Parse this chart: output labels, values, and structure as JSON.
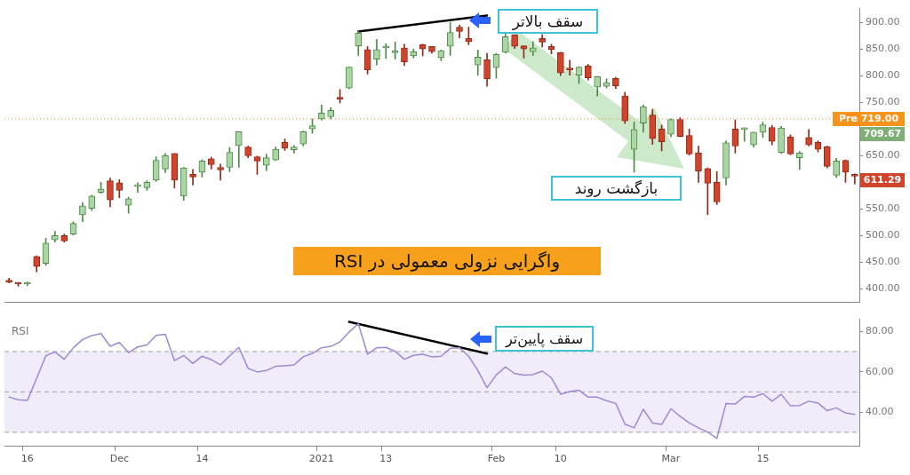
{
  "chart_data": [
    {
      "type": "candlestick",
      "categories": [
        null,
        null,
        null,
        null,
        null,
        null,
        null,
        null,
        null,
        null,
        null,
        null,
        null,
        null,
        null,
        null,
        null,
        null,
        null,
        null,
        null,
        null,
        null,
        null,
        null,
        null,
        null,
        null,
        null,
        null,
        null,
        null,
        null,
        null,
        null,
        null,
        null,
        null,
        null,
        null,
        null,
        null,
        null,
        null,
        null,
        null,
        null,
        null,
        null,
        null,
        null,
        null,
        null,
        null,
        null,
        null,
        null,
        null,
        null,
        null,
        null,
        null,
        null,
        null,
        null,
        null,
        null,
        null,
        null,
        null,
        null,
        null,
        null,
        null,
        null,
        null,
        null,
        null,
        null,
        null,
        null,
        null,
        null,
        null,
        null,
        null,
        null,
        null,
        null,
        null,
        null,
        null,
        null
      ],
      "ohlc": [
        [
          416,
          420,
          411,
          413
        ],
        [
          411,
          412,
          405,
          409
        ],
        [
          409,
          413,
          406,
          410
        ],
        [
          461,
          462,
          432,
          442
        ],
        [
          448,
          495,
          444,
          486
        ],
        [
          492,
          508,
          488,
          500
        ],
        [
          500,
          503,
          488,
          490
        ],
        [
          503,
          526,
          501,
          523
        ],
        [
          539,
          562,
          526,
          556
        ],
        [
          551,
          576,
          547,
          574
        ],
        [
          581,
          600,
          579,
          587
        ],
        [
          603,
          608,
          554,
          567
        ],
        [
          599,
          605,
          571,
          585
        ],
        [
          557,
          572,
          542,
          569
        ],
        [
          592,
          599,
          581,
          594
        ],
        [
          590,
          603,
          585,
          600
        ],
        [
          604,
          648,
          602,
          641
        ],
        [
          625,
          654,
          618,
          650
        ],
        [
          654,
          654,
          589,
          604
        ],
        [
          574,
          628,
          566,
          627
        ],
        [
          615,
          624,
          595,
          610
        ],
        [
          619,
          642,
          610,
          640
        ],
        [
          644,
          647,
          625,
          633
        ],
        [
          628,
          634,
          604,
          623
        ],
        [
          628,
          665,
          620,
          656
        ],
        [
          669,
          695,
          628,
          695
        ],
        [
          666,
          668,
          646,
          650
        ],
        [
          648,
          649,
          615,
          640
        ],
        [
          632,
          653,
          622,
          646
        ],
        [
          642,
          666,
          641,
          662
        ],
        [
          675,
          681,
          660,
          664
        ],
        [
          661,
          669,
          655,
          666
        ],
        [
          672,
          696,
          668,
          695
        ],
        [
          700,
          719,
          692,
          706
        ],
        [
          719,
          745,
          717,
          730
        ],
        [
          723,
          740,
          719,
          735
        ],
        [
          758,
          774,
          749,
          756
        ],
        [
          777,
          816,
          775,
          816
        ],
        [
          856,
          884,
          838,
          880
        ],
        [
          849,
          855,
          803,
          811
        ],
        [
          831,
          868,
          820,
          849
        ],
        [
          852,
          860,
          832,
          854
        ],
        [
          843,
          863,
          831,
          845
        ],
        [
          852,
          859,
          819,
          826
        ],
        [
          837,
          850,
          833,
          845
        ],
        [
          858,
          859,
          837,
          850
        ],
        [
          855,
          855,
          842,
          845
        ],
        [
          834,
          848,
          828,
          847
        ],
        [
          855,
          900,
          838,
          881
        ],
        [
          891,
          895,
          871,
          883
        ],
        [
          870,
          891,
          858,
          864
        ],
        [
          820,
          848,
          801,
          835
        ],
        [
          830,
          842,
          780,
          794
        ],
        [
          815,
          842,
          795,
          840
        ],
        [
          844,
          880,
          842,
          873
        ],
        [
          877,
          877,
          851,
          855
        ],
        [
          856,
          856,
          833,
          850
        ],
        [
          845,
          864,
          838,
          852
        ],
        [
          870,
          877,
          854,
          863
        ],
        [
          855,
          859,
          841,
          849
        ],
        [
          843,
          844,
          800,
          805
        ],
        [
          812,
          829,
          801,
          811
        ],
        [
          801,
          817,
          785,
          816
        ],
        [
          818,
          821,
          792,
          796
        ],
        [
          779,
          799,
          762,
          798
        ],
        [
          780,
          794,
          777,
          787
        ],
        [
          795,
          797,
          776,
          781
        ],
        [
          762,
          769,
          710,
          715
        ],
        [
          662,
          713,
          619,
          699
        ],
        [
          711,
          745,
          694,
          742
        ],
        [
          726,
          737,
          671,
          682
        ],
        [
          700,
          707,
          659,
          676
        ],
        [
          690,
          719,
          685,
          718
        ],
        [
          718,
          721,
          685,
          686
        ],
        [
          688,
          700,
          651,
          653
        ],
        [
          655,
          668,
          600,
          621
        ],
        [
          626,
          627,
          539,
          598
        ],
        [
          600,
          620,
          558,
          563
        ],
        [
          608,
          678,
          595,
          674
        ],
        [
          700,
          717,
          655,
          668
        ],
        [
          699,
          702,
          677,
          700
        ],
        [
          670,
          694,
          666,
          694
        ],
        [
          694,
          713,
          684,
          708
        ],
        [
          703,
          707,
          670,
          677
        ],
        [
          656,
          705,
          654,
          702
        ],
        [
          685,
          689,
          652,
          653
        ],
        [
          646,
          658,
          624,
          655
        ],
        [
          684,
          699,
          668,
          670
        ],
        [
          675,
          678,
          657,
          662
        ],
        [
          667,
          668,
          627,
          630
        ],
        [
          613,
          645,
          609,
          640
        ],
        [
          641,
          642,
          600,
          619
        ],
        [
          615,
          616,
          597,
          611.29
        ]
      ],
      "series": [
        {
          "type": "line",
          "color": "#000000",
          "values": [
            null,
            null,
            null,
            null,
            null,
            null,
            null,
            null,
            null,
            null,
            null,
            null,
            null,
            null,
            null,
            null,
            null,
            null,
            null,
            null,
            null,
            null,
            null,
            null,
            null,
            null,
            null,
            null,
            null,
            null,
            null,
            null,
            null,
            null,
            null,
            null,
            null,
            null,
            883,
            null,
            null,
            null,
            null,
            null,
            null,
            null,
            null,
            null,
            null,
            null,
            null,
            null,
            913,
            null,
            null,
            null,
            null,
            null,
            null,
            null,
            null,
            null,
            null,
            null,
            null,
            null,
            null,
            null,
            null,
            null,
            null,
            null,
            null,
            null,
            null,
            null,
            null,
            null,
            null,
            null,
            null,
            null,
            null,
            null,
            null,
            null,
            null,
            null,
            null,
            null,
            null,
            null,
            null
          ]
        }
      ],
      "ylim": [
        375,
        926
      ],
      "yticks": [
        {
          "value": 400,
          "label": "400.00"
        },
        {
          "value": 450,
          "label": "450.00"
        },
        {
          "value": 500,
          "label": "500.00"
        },
        {
          "value": 550,
          "label": "550.00"
        },
        {
          "value": 600,
          "label": null
        },
        {
          "value": 650,
          "label": "650.00"
        },
        {
          "value": 700,
          "label": null
        },
        {
          "value": 750,
          "label": "750.00"
        },
        {
          "value": 800,
          "label": "800.00"
        },
        {
          "value": 850,
          "label": "850.00"
        },
        {
          "value": 900,
          "label": "900.00"
        }
      ],
      "tick_labels": "y",
      "ref_lines": [
        {
          "axis": "y",
          "value": 719,
          "label": "Pre 719.00",
          "color": "#f7931a",
          "line_style": "dotted"
        }
      ],
      "annotations": [
        "709.67",
        "611.29",
        "سقف بالاتر",
        "بازگشت روند",
        "واگرایی نزولی معمولی در RSI"
      ]
    },
    {
      "type": "line",
      "title": "RSI",
      "categories": [
        null,
        null,
        "16",
        null,
        null,
        null,
        null,
        null,
        null,
        null,
        null,
        null,
        "Dec",
        null,
        null,
        null,
        null,
        null,
        null,
        null,
        null,
        "14",
        null,
        null,
        null,
        null,
        null,
        null,
        null,
        null,
        null,
        null,
        null,
        null,
        "2021",
        null,
        null,
        null,
        null,
        null,
        null,
        "13",
        null,
        null,
        null,
        null,
        null,
        null,
        null,
        null,
        null,
        null,
        null,
        "Feb",
        null,
        null,
        null,
        null,
        null,
        null,
        "10",
        null,
        null,
        null,
        null,
        null,
        null,
        null,
        null,
        null,
        null,
        null,
        "Mar",
        null,
        null,
        null,
        null,
        null,
        null,
        null,
        null,
        null,
        "15",
        null,
        null,
        null,
        null,
        null,
        null,
        null,
        null,
        null,
        null
      ],
      "series": [
        {
          "color": "#9c89d4",
          "values": [
            47.5,
            46.1,
            45.8,
            56.7,
            67.9,
            69.8,
            66.2,
            71.9,
            76,
            77.9,
            78.9,
            72.6,
            74.5,
            69.5,
            72.3,
            73.3,
            78,
            78.6,
            65.5,
            68.1,
            64.1,
            67.7,
            66,
            63.4,
            67.9,
            72.1,
            61.7,
            59.9,
            60.6,
            62.7,
            63,
            63.4,
            67.4,
            69.1,
            71.9,
            72.6,
            74.8,
            79.7,
            83.7,
            68.7,
            71.9,
            72.1,
            70.1,
            66.2,
            68.1,
            68.7,
            67.4,
            67.7,
            71.6,
            71.9,
            67.7,
            60.6,
            52.1,
            58.4,
            62.4,
            59.1,
            58.3,
            58.6,
            60.3,
            57,
            48.9,
            50.2,
            50.8,
            47.4,
            47.4,
            45.7,
            44.3,
            34,
            32.2,
            41.4,
            34.6,
            33.9,
            41.7,
            37.9,
            34.6,
            32.2,
            30.1,
            27,
            44.3,
            44,
            47.8,
            47.4,
            49.2,
            45.4,
            48.8,
            43.1,
            43.3,
            45.4,
            44.5,
            40.7,
            42.1,
            39.6,
            38.9
          ]
        },
        {
          "type": "line",
          "color": "#000000",
          "values": [
            null,
            null,
            null,
            null,
            null,
            null,
            null,
            null,
            null,
            null,
            null,
            null,
            null,
            null,
            null,
            null,
            null,
            null,
            null,
            null,
            null,
            null,
            null,
            null,
            null,
            null,
            null,
            null,
            null,
            null,
            null,
            null,
            null,
            null,
            null,
            null,
            null,
            84.7,
            null,
            null,
            null,
            null,
            null,
            null,
            null,
            null,
            null,
            null,
            null,
            null,
            null,
            null,
            69,
            null,
            null,
            null,
            null,
            null,
            null,
            null,
            null,
            null,
            null,
            null,
            null,
            null,
            null,
            null,
            null,
            null,
            null,
            null,
            null,
            null,
            null,
            null,
            null,
            null,
            null,
            null,
            null,
            null,
            null,
            null,
            null,
            null,
            null,
            null,
            null,
            null,
            null,
            null,
            null
          ]
        }
      ],
      "ylim": [
        23,
        86
      ],
      "yticks": [
        {
          "value": 40,
          "label": "40.00"
        },
        {
          "value": 60,
          "label": "60.00"
        },
        {
          "value": 80,
          "label": "80.00"
        }
      ],
      "bands": [
        {
          "axis": "y",
          "from": 30,
          "to": 70,
          "color": "#f1ecfa"
        }
      ],
      "ref_lines": [
        {
          "axis": "y",
          "value": 70,
          "color": "#a0a0a0",
          "line_style": "dashed"
        },
        {
          "axis": "y",
          "value": 50,
          "color": "#a0a0a0",
          "line_style": "dashed"
        },
        {
          "axis": "y",
          "value": 30,
          "color": "#a0a0a0",
          "line_style": "dashed"
        }
      ],
      "annotations": [
        "سقف پایین‌تر"
      ]
    }
  ]
}
